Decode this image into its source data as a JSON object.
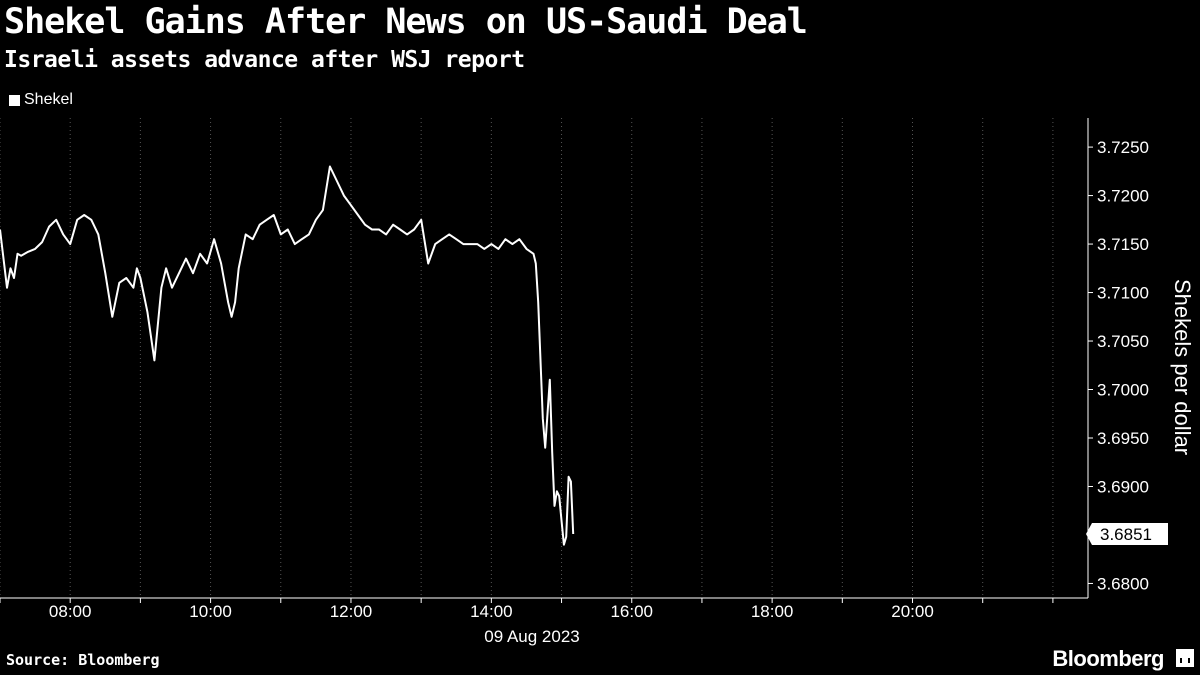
{
  "header": {
    "title": "Shekel Gains After News on US-Saudi Deal",
    "subtitle": "Israeli assets advance after WSJ report"
  },
  "legend": {
    "label": "Shekel"
  },
  "footer": {
    "source": "Source: Bloomberg",
    "brand": "Bloomberg"
  },
  "colors": {
    "background": "#000000",
    "line": "#ffffff",
    "grid": "#555555",
    "text": "#ffffff"
  },
  "chart_data": {
    "type": "line",
    "title": "Shekel Gains After News on US-Saudi Deal",
    "subtitle": "Israeli assets advance after WSJ report",
    "ylabel": "Shekels per dollar",
    "xlabel": "09 Aug 2023",
    "ylim": [
      3.6785,
      3.728
    ],
    "yticks": [
      3.725,
      3.72,
      3.715,
      3.71,
      3.705,
      3.7,
      3.695,
      3.69,
      3.68
    ],
    "ytick_labels": [
      "3.7250",
      "3.7200",
      "3.7150",
      "3.7100",
      "3.7050",
      "3.7000",
      "3.6950",
      "3.6900",
      "3.6800"
    ],
    "xlim": [
      "07:00",
      "22:30"
    ],
    "xticks": [
      "08:00",
      "10:00",
      "12:00",
      "14:00",
      "16:00",
      "18:00",
      "20:00"
    ],
    "x_date_label": "09 Aug 2023",
    "grid": "vertical",
    "legend_position": "top-left",
    "last_value_label": "3.6851",
    "series": [
      {
        "name": "Shekel",
        "x": [
          "07:00",
          "07:03",
          "07:06",
          "07:09",
          "07:12",
          "07:15",
          "07:18",
          "07:24",
          "07:30",
          "07:36",
          "07:42",
          "07:48",
          "07:54",
          "08:00",
          "08:06",
          "08:12",
          "08:18",
          "08:24",
          "08:30",
          "08:36",
          "08:42",
          "08:48",
          "08:54",
          "08:57",
          "09:00",
          "09:06",
          "09:12",
          "09:18",
          "09:22",
          "09:27",
          "09:33",
          "09:39",
          "09:45",
          "09:51",
          "09:57",
          "10:03",
          "10:09",
          "10:15",
          "10:18",
          "10:21",
          "10:24",
          "10:30",
          "10:36",
          "10:42",
          "10:48",
          "10:54",
          "11:00",
          "11:06",
          "11:12",
          "11:18",
          "11:24",
          "11:30",
          "11:36",
          "11:42",
          "11:48",
          "11:54",
          "12:00",
          "12:06",
          "12:12",
          "12:18",
          "12:24",
          "12:30",
          "12:36",
          "12:42",
          "12:48",
          "12:54",
          "13:00",
          "13:06",
          "13:12",
          "13:18",
          "13:24",
          "13:30",
          "13:36",
          "13:42",
          "13:48",
          "13:54",
          "14:00",
          "14:06",
          "14:12",
          "14:18",
          "14:24",
          "14:30",
          "14:36",
          "14:38",
          "14:40",
          "14:42",
          "14:44",
          "14:46",
          "14:48",
          "14:50",
          "14:52",
          "14:54",
          "14:56",
          "14:58",
          "15:00",
          "15:02",
          "15:04",
          "15:06",
          "15:08",
          "15:10"
        ],
        "values": [
          3.7165,
          3.7135,
          3.7105,
          3.7125,
          3.7115,
          3.714,
          3.7138,
          3.7142,
          3.7145,
          3.7152,
          3.7168,
          3.7175,
          3.716,
          3.715,
          3.7175,
          3.718,
          3.7175,
          3.716,
          3.712,
          3.7075,
          3.711,
          3.7115,
          3.7105,
          3.7125,
          3.7115,
          3.708,
          3.703,
          3.7105,
          3.7125,
          3.7105,
          3.712,
          3.7135,
          3.712,
          3.714,
          3.713,
          3.7155,
          3.713,
          3.709,
          3.7075,
          3.709,
          3.7125,
          3.716,
          3.7155,
          3.717,
          3.7175,
          3.718,
          3.716,
          3.7165,
          3.715,
          3.7155,
          3.716,
          3.7175,
          3.7185,
          3.723,
          3.7215,
          3.72,
          3.719,
          3.718,
          3.717,
          3.7165,
          3.7165,
          3.716,
          3.717,
          3.7165,
          3.716,
          3.7165,
          3.7175,
          3.713,
          3.715,
          3.7155,
          3.716,
          3.7155,
          3.715,
          3.715,
          3.715,
          3.7145,
          3.715,
          3.7145,
          3.7155,
          3.715,
          3.7155,
          3.7145,
          3.714,
          3.713,
          3.709,
          3.703,
          3.697,
          3.694,
          3.6975,
          3.701,
          3.6935,
          3.688,
          3.6895,
          3.689,
          3.6865,
          3.684,
          3.6848,
          3.691,
          3.6905,
          3.6851
        ]
      }
    ]
  }
}
